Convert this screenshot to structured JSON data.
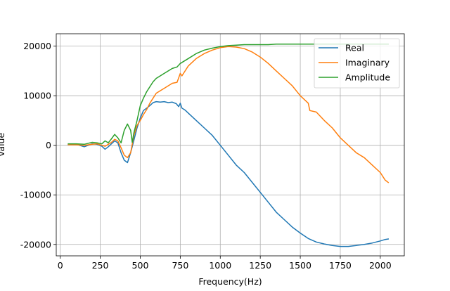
{
  "chart_data": {
    "type": "line",
    "title": "",
    "xlabel": "Frequency(Hz)",
    "ylabel": "Value",
    "xlim": [
      -25,
      2150
    ],
    "ylim": [
      -22300,
      22500
    ],
    "x_ticks": [
      0,
      250,
      500,
      750,
      1000,
      1250,
      1500,
      1750,
      2000
    ],
    "y_ticks": [
      -20000,
      -10000,
      0,
      10000,
      20000
    ],
    "grid": true,
    "legend_position": "top-right",
    "series": [
      {
        "name": "Real",
        "color": "#1f77b4",
        "points": [
          [
            50,
            100
          ],
          [
            100,
            200
          ],
          [
            150,
            -300
          ],
          [
            200,
            300
          ],
          [
            230,
            200
          ],
          [
            260,
            -200
          ],
          [
            280,
            -800
          ],
          [
            300,
            -300
          ],
          [
            320,
            300
          ],
          [
            340,
            900
          ],
          [
            360,
            500
          ],
          [
            380,
            -1500
          ],
          [
            400,
            -3000
          ],
          [
            420,
            -3500
          ],
          [
            440,
            -1500
          ],
          [
            460,
            1000
          ],
          [
            480,
            3500
          ],
          [
            500,
            5500
          ],
          [
            520,
            7000
          ],
          [
            540,
            7500
          ],
          [
            560,
            8000
          ],
          [
            580,
            8600
          ],
          [
            600,
            8800
          ],
          [
            625,
            8700
          ],
          [
            650,
            8800
          ],
          [
            675,
            8600
          ],
          [
            700,
            8700
          ],
          [
            725,
            8400
          ],
          [
            740,
            7800
          ],
          [
            750,
            8500
          ],
          [
            760,
            7500
          ],
          [
            780,
            7100
          ],
          [
            800,
            6500
          ],
          [
            850,
            5000
          ],
          [
            900,
            3500
          ],
          [
            950,
            2000
          ],
          [
            1000,
            0
          ],
          [
            1050,
            -2000
          ],
          [
            1100,
            -4000
          ],
          [
            1150,
            -5500
          ],
          [
            1200,
            -7500
          ],
          [
            1250,
            -9500
          ],
          [
            1300,
            -11500
          ],
          [
            1350,
            -13500
          ],
          [
            1400,
            -15000
          ],
          [
            1450,
            -16500
          ],
          [
            1500,
            -17700
          ],
          [
            1550,
            -18800
          ],
          [
            1600,
            -19500
          ],
          [
            1650,
            -19900
          ],
          [
            1700,
            -20200
          ],
          [
            1750,
            -20400
          ],
          [
            1800,
            -20400
          ],
          [
            1850,
            -20200
          ],
          [
            1900,
            -20000
          ],
          [
            1950,
            -19700
          ],
          [
            2000,
            -19300
          ],
          [
            2030,
            -19000
          ],
          [
            2050,
            -18900
          ]
        ]
      },
      {
        "name": "Imaginary",
        "color": "#ff7f0e",
        "points": [
          [
            50,
            100
          ],
          [
            100,
            100
          ],
          [
            150,
            0
          ],
          [
            200,
            200
          ],
          [
            230,
            300
          ],
          [
            260,
            0
          ],
          [
            280,
            -200
          ],
          [
            300,
            200
          ],
          [
            320,
            600
          ],
          [
            340,
            1200
          ],
          [
            360,
            900
          ],
          [
            380,
            -500
          ],
          [
            400,
            -2000
          ],
          [
            420,
            -2500
          ],
          [
            440,
            -1500
          ],
          [
            460,
            2000
          ],
          [
            480,
            4000
          ],
          [
            500,
            5000
          ],
          [
            520,
            6200
          ],
          [
            540,
            7200
          ],
          [
            560,
            8500
          ],
          [
            580,
            9500
          ],
          [
            600,
            10500
          ],
          [
            650,
            11500
          ],
          [
            700,
            12500
          ],
          [
            730,
            12700
          ],
          [
            750,
            14500
          ],
          [
            760,
            14000
          ],
          [
            800,
            16000
          ],
          [
            850,
            17500
          ],
          [
            900,
            18500
          ],
          [
            950,
            19200
          ],
          [
            1000,
            19700
          ],
          [
            1050,
            19900
          ],
          [
            1100,
            19800
          ],
          [
            1150,
            19500
          ],
          [
            1200,
            18800
          ],
          [
            1250,
            17800
          ],
          [
            1300,
            16500
          ],
          [
            1350,
            15000
          ],
          [
            1400,
            13500
          ],
          [
            1450,
            12000
          ],
          [
            1500,
            10000
          ],
          [
            1550,
            8500
          ],
          [
            1560,
            7000
          ],
          [
            1600,
            6700
          ],
          [
            1650,
            5000
          ],
          [
            1700,
            3500
          ],
          [
            1750,
            1500
          ],
          [
            1800,
            0
          ],
          [
            1850,
            -1500
          ],
          [
            1900,
            -2500
          ],
          [
            1950,
            -4000
          ],
          [
            2000,
            -5500
          ],
          [
            2030,
            -7000
          ],
          [
            2050,
            -7500
          ]
        ]
      },
      {
        "name": "Amplitude",
        "color": "#2ca02c",
        "points": [
          [
            50,
            300
          ],
          [
            100,
            300
          ],
          [
            150,
            200
          ],
          [
            200,
            600
          ],
          [
            230,
            500
          ],
          [
            260,
            300
          ],
          [
            280,
            900
          ],
          [
            300,
            500
          ],
          [
            320,
            1300
          ],
          [
            340,
            2200
          ],
          [
            360,
            1500
          ],
          [
            380,
            500
          ],
          [
            400,
            3000
          ],
          [
            420,
            4300
          ],
          [
            440,
            3000
          ],
          [
            450,
            600
          ],
          [
            460,
            2500
          ],
          [
            480,
            5000
          ],
          [
            500,
            8000
          ],
          [
            520,
            9500
          ],
          [
            540,
            10800
          ],
          [
            560,
            11800
          ],
          [
            580,
            12800
          ],
          [
            600,
            13500
          ],
          [
            650,
            14500
          ],
          [
            700,
            15500
          ],
          [
            730,
            15800
          ],
          [
            750,
            16500
          ],
          [
            800,
            17500
          ],
          [
            850,
            18500
          ],
          [
            900,
            19200
          ],
          [
            950,
            19600
          ],
          [
            1000,
            19900
          ],
          [
            1050,
            20100
          ],
          [
            1100,
            20200
          ],
          [
            1150,
            20300
          ],
          [
            1200,
            20300
          ],
          [
            1250,
            20300
          ],
          [
            1300,
            20300
          ],
          [
            1350,
            20400
          ],
          [
            1400,
            20400
          ],
          [
            1500,
            20400
          ],
          [
            1600,
            20400
          ],
          [
            1700,
            20400
          ],
          [
            1800,
            20400
          ],
          [
            1900,
            20400
          ],
          [
            2000,
            20400
          ],
          [
            2050,
            20400
          ]
        ]
      }
    ]
  }
}
